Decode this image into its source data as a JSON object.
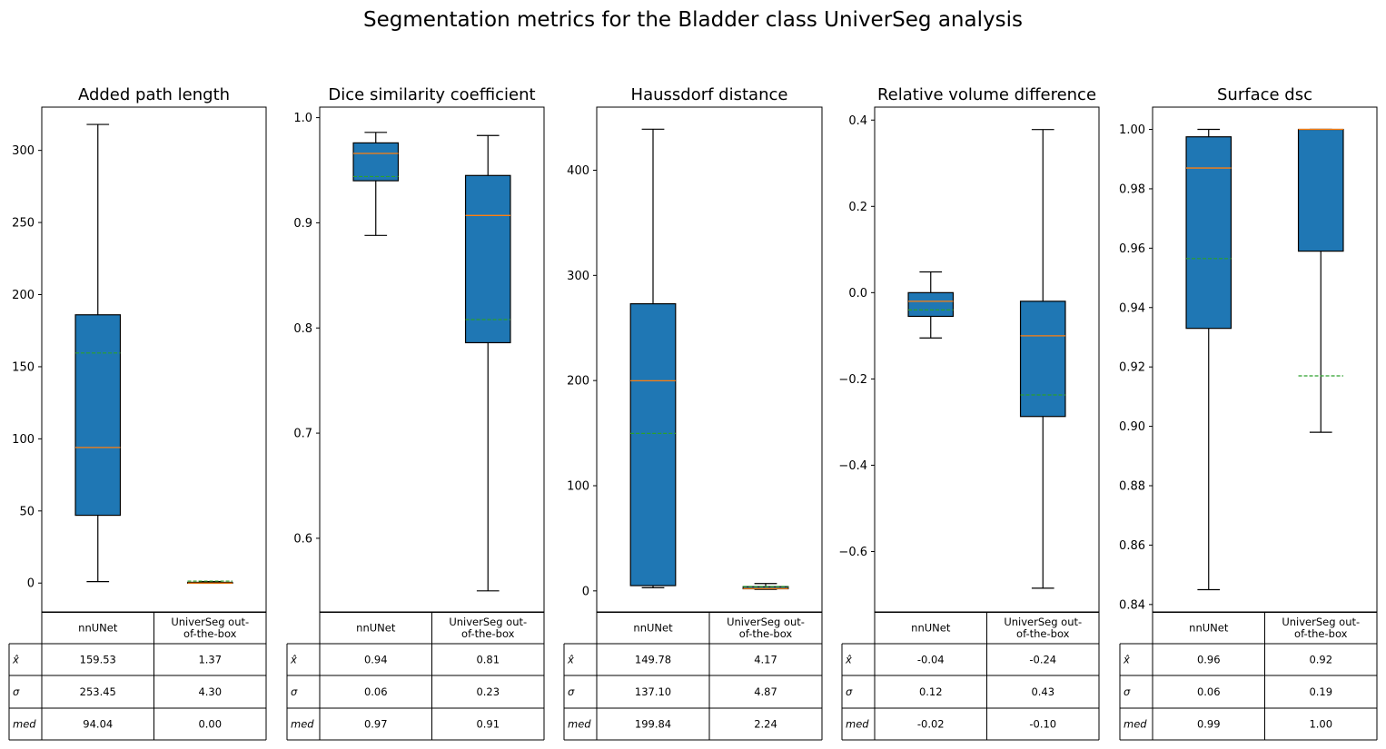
{
  "figure": {
    "title": "Segmentation metrics for the Bladder class UniverSeg analysis"
  },
  "colors": {
    "box_fill": "#1f77b4",
    "median_line": "#ff7f0e",
    "mean_line": "#2ca02c",
    "axis": "#000000"
  },
  "chart_data": [
    {
      "type": "box",
      "title": "Added path length",
      "categories": [
        "nnUNet",
        "UniverSeg out-\nof-the-box"
      ],
      "ylim": [
        -20,
        330
      ],
      "yticks": [
        0,
        50,
        100,
        150,
        200,
        250,
        300
      ],
      "ytick_labels": [
        "0",
        "50",
        "100",
        "150",
        "200",
        "250",
        "300"
      ],
      "boxes": [
        {
          "whislo": 1,
          "q1": 47,
          "med": 94.04,
          "q3": 186,
          "whishi": 318,
          "mean": 159.53
        },
        {
          "whislo": 0,
          "q1": 0,
          "med": 0.0,
          "q3": 0.5,
          "whishi": 1,
          "mean": 1.37
        }
      ],
      "table": {
        "row_labels": [
          "x̂",
          "σ",
          "med"
        ],
        "cells": [
          [
            "159.53",
            "1.37"
          ],
          [
            "253.45",
            "4.30"
          ],
          [
            "94.04",
            "0.00"
          ]
        ]
      }
    },
    {
      "type": "box",
      "title": "Dice similarity coefficient",
      "categories": [
        "nnUNet",
        "UniverSeg out-\nof-the-box"
      ],
      "ylim": [
        0.53,
        1.01
      ],
      "yticks": [
        0.6,
        0.7,
        0.8,
        0.9,
        1.0
      ],
      "ytick_labels": [
        "0.6",
        "0.7",
        "0.8",
        "0.9",
        "1.0"
      ],
      "boxes": [
        {
          "whislo": 0.888,
          "q1": 0.94,
          "med": 0.966,
          "q3": 0.976,
          "whishi": 0.986,
          "mean": 0.944
        },
        {
          "whislo": 0.55,
          "q1": 0.786,
          "med": 0.907,
          "q3": 0.945,
          "whishi": 0.983,
          "mean": 0.808
        }
      ],
      "table": {
        "row_labels": [
          "x̂",
          "σ",
          "med"
        ],
        "cells": [
          [
            "0.94",
            "0.81"
          ],
          [
            "0.06",
            "0.23"
          ],
          [
            "0.97",
            "0.91"
          ]
        ]
      }
    },
    {
      "type": "box",
      "title": "Haussdorf distance",
      "categories": [
        "nnUNet",
        "UniverSeg out-\nof-the-box"
      ],
      "ylim": [
        -20,
        460
      ],
      "yticks": [
        0,
        100,
        200,
        300,
        400
      ],
      "ytick_labels": [
        "0",
        "100",
        "200",
        "300",
        "400"
      ],
      "boxes": [
        {
          "whislo": 3,
          "q1": 5,
          "med": 199.84,
          "q3": 273,
          "whishi": 439,
          "mean": 149.78
        },
        {
          "whislo": 1.5,
          "q1": 2,
          "med": 2.24,
          "q3": 4,
          "whishi": 7,
          "mean": 4.17
        }
      ],
      "table": {
        "row_labels": [
          "x̂",
          "σ",
          "med"
        ],
        "cells": [
          [
            "149.78",
            "4.17"
          ],
          [
            "137.10",
            "4.87"
          ],
          [
            "199.84",
            "2.24"
          ]
        ]
      }
    },
    {
      "type": "box",
      "title": "Relative volume difference",
      "categories": [
        "nnUNet",
        "UniverSeg out-\nof-the-box"
      ],
      "ylim": [
        -0.74,
        0.43
      ],
      "yticks": [
        -0.6,
        -0.4,
        -0.2,
        0.0,
        0.2,
        0.4
      ],
      "ytick_labels": [
        "−0.6",
        "−0.4",
        "−0.2",
        "0.0",
        "0.2",
        "0.4"
      ],
      "boxes": [
        {
          "whislo": -0.105,
          "q1": -0.055,
          "med": -0.02,
          "q3": 0.0,
          "whishi": 0.048,
          "mean": -0.04
        },
        {
          "whislo": -0.685,
          "q1": -0.287,
          "med": -0.1,
          "q3": -0.02,
          "whishi": 0.378,
          "mean": -0.237
        }
      ],
      "table": {
        "row_labels": [
          "x̂",
          "σ",
          "med"
        ],
        "cells": [
          [
            "-0.04",
            "-0.24"
          ],
          [
            "0.12",
            "0.43"
          ],
          [
            "-0.02",
            "-0.10"
          ]
        ]
      }
    },
    {
      "type": "box",
      "title": "Surface dsc",
      "categories": [
        "nnUNet",
        "UniverSeg out-\nof-the-box"
      ],
      "ylim": [
        0.8375,
        1.0075
      ],
      "yticks": [
        0.84,
        0.86,
        0.88,
        0.9,
        0.92,
        0.94,
        0.96,
        0.98,
        1.0
      ],
      "ytick_labels": [
        "0.84",
        "0.86",
        "0.88",
        "0.90",
        "0.92",
        "0.94",
        "0.96",
        "0.98",
        "1.00"
      ],
      "boxes": [
        {
          "whislo": 0.845,
          "q1": 0.933,
          "med": 0.987,
          "q3": 0.9975,
          "whishi": 1.0,
          "mean": 0.9565
        },
        {
          "whislo": 0.898,
          "q1": 0.959,
          "med": 1.0,
          "q3": 1.0,
          "whishi": 1.0,
          "mean": 0.917
        }
      ],
      "table": {
        "row_labels": [
          "x̂",
          "σ",
          "med"
        ],
        "cells": [
          [
            "0.96",
            "0.92"
          ],
          [
            "0.06",
            "0.19"
          ],
          [
            "0.99",
            "1.00"
          ]
        ]
      }
    }
  ]
}
